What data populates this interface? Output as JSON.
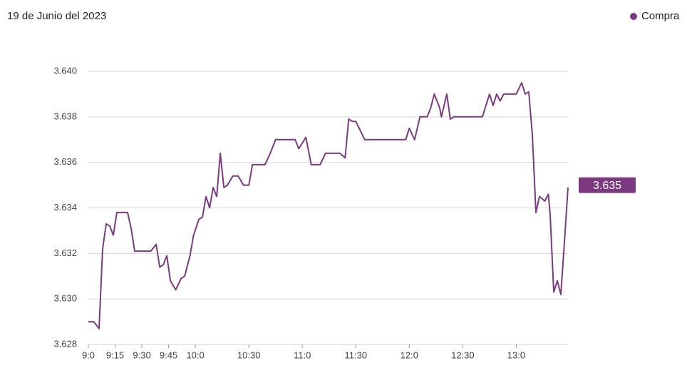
{
  "chart_data": {
    "type": "line",
    "title": "19 de Junio del 2023",
    "x": [
      540,
      543,
      544,
      546,
      548,
      550,
      552,
      554,
      556,
      559,
      562,
      564,
      566,
      569,
      575,
      578,
      580,
      582,
      584,
      586,
      589,
      592,
      594,
      597,
      599,
      602,
      604,
      606,
      608,
      610,
      612,
      614,
      616,
      618,
      621,
      624,
      627,
      630,
      632,
      634,
      639,
      642,
      645,
      650,
      656,
      658,
      662,
      665,
      667,
      670,
      673,
      678,
      681,
      684,
      686,
      688,
      690,
      695,
      706,
      718,
      720,
      723,
      726,
      730,
      732,
      734,
      737,
      738,
      741,
      743,
      745,
      754,
      761,
      765,
      767,
      769,
      771,
      773,
      778,
      780,
      783,
      785,
      787,
      789,
      791,
      793,
      796,
      798,
      799,
      801,
      803,
      805,
      807,
      809
    ],
    "series": [
      {
        "name": "Compra",
        "color": "#7b3a7f",
        "values": [
          3.629,
          3.629,
          3.6289,
          3.6287,
          3.6322,
          3.6333,
          3.6332,
          3.6328,
          3.6338,
          3.6338,
          3.6338,
          3.6331,
          3.6321,
          3.6321,
          3.6321,
          3.6324,
          3.6314,
          3.6315,
          3.6319,
          3.6308,
          3.6304,
          3.6309,
          3.631,
          3.6319,
          3.6328,
          3.6335,
          3.6336,
          3.6345,
          3.634,
          3.6349,
          3.6345,
          3.6364,
          3.6349,
          3.635,
          3.6354,
          3.6354,
          3.635,
          3.635,
          3.6359,
          3.6359,
          3.6359,
          3.6364,
          3.637,
          3.637,
          3.637,
          3.6366,
          3.6371,
          3.6359,
          3.6359,
          3.6359,
          3.6364,
          3.6364,
          3.6364,
          3.6362,
          3.6379,
          3.6378,
          3.6378,
          3.637,
          3.637,
          3.637,
          3.6375,
          3.637,
          3.638,
          3.638,
          3.6384,
          3.639,
          3.6384,
          3.638,
          3.639,
          3.6379,
          3.638,
          3.638,
          3.638,
          3.639,
          3.6385,
          3.639,
          3.6387,
          3.639,
          3.639,
          3.639,
          3.6395,
          3.639,
          3.6391,
          3.6372,
          3.6338,
          3.6345,
          3.6343,
          3.6346,
          3.6337,
          3.6303,
          3.6308,
          3.6302,
          3.6325,
          3.6349
        ]
      }
    ],
    "xlim": [
      540,
      809
    ],
    "xticks": [
      {
        "value": 540,
        "label": "9:0"
      },
      {
        "value": 555,
        "label": "9:15"
      },
      {
        "value": 570,
        "label": "9:30"
      },
      {
        "value": 585,
        "label": "9:45"
      },
      {
        "value": 600,
        "label": "10:0"
      },
      {
        "value": 630,
        "label": "10:30"
      },
      {
        "value": 660,
        "label": "11:0"
      },
      {
        "value": 690,
        "label": "11:30"
      },
      {
        "value": 720,
        "label": "12:0"
      },
      {
        "value": 750,
        "label": "12:30"
      },
      {
        "value": 780,
        "label": "13:0"
      }
    ],
    "ylim": [
      3.628,
      3.64
    ],
    "yticks": [
      3.628,
      {
        "value": 3.63,
        "label": "3.630"
      },
      3.632,
      3.634,
      3.636,
      3.638,
      {
        "value": 3.64,
        "label": "3.640"
      }
    ],
    "grid": true,
    "legend": "top-right",
    "annotations": [
      {
        "text": "3.635",
        "value": 3.635
      }
    ]
  }
}
